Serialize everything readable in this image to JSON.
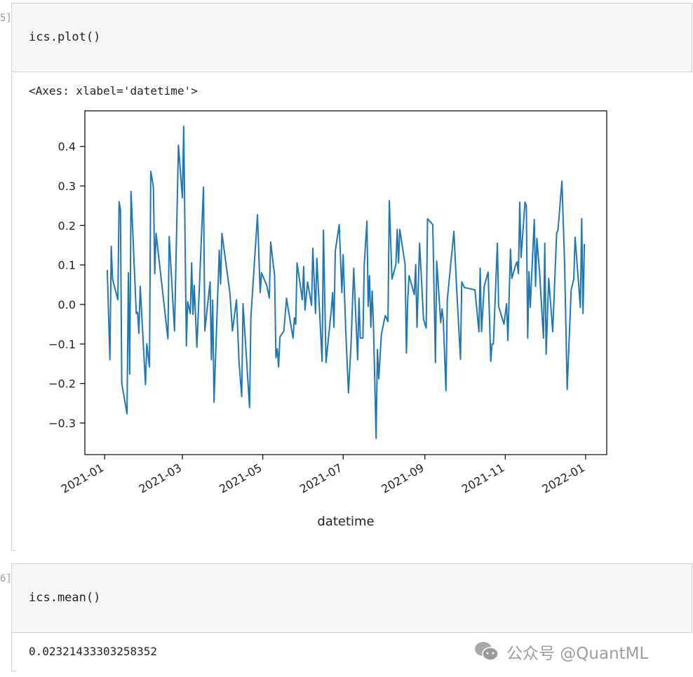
{
  "cells": [
    {
      "prompt": "5]",
      "code": "ics.plot()",
      "output": "<Axes: xlabel='datetime'>"
    },
    {
      "prompt": "6]",
      "code": "ics.mean()",
      "output": "0.02321433303258352"
    }
  ],
  "watermark": {
    "text": "公众号 @QuantML",
    "icon": "wechat-icon"
  },
  "colors": {
    "line": "#1f77b4",
    "input_bg": "#f7f7f7"
  },
  "chart_data": {
    "type": "line",
    "xlabel": "datetime",
    "ylabel": "",
    "xlim": [
      "2020-12-17",
      "2022-01-17"
    ],
    "ylim": [
      -0.38,
      0.49
    ],
    "grid": false,
    "x_ticks": [
      "2021-01",
      "2021-03",
      "2021-05",
      "2021-07",
      "2021-09",
      "2021-11",
      "2022-01"
    ],
    "y_ticks": [
      "0.4",
      "0.3",
      "0.2",
      "0.1",
      "0.0",
      "−0.1",
      "−0.2",
      "−0.3"
    ],
    "y_tick_values": [
      0.4,
      0.3,
      0.2,
      0.1,
      0.0,
      -0.1,
      -0.2,
      -0.3
    ],
    "points": [
      [
        "2021-01-03",
        0.087
      ],
      [
        "2021-01-05",
        -0.14
      ],
      [
        "2021-01-06",
        0.147
      ],
      [
        "2021-01-07",
        0.064
      ],
      [
        "2021-01-11",
        0.012
      ],
      [
        "2021-01-12",
        0.26
      ],
      [
        "2021-01-13",
        0.24
      ],
      [
        "2021-01-14",
        -0.2
      ],
      [
        "2021-01-18",
        -0.277
      ],
      [
        "2021-01-19",
        0.08
      ],
      [
        "2021-01-20",
        -0.176
      ],
      [
        "2021-01-21",
        0.286
      ],
      [
        "2021-01-25",
        -0.023
      ],
      [
        "2021-01-26",
        -0.02
      ],
      [
        "2021-01-27",
        -0.073
      ],
      [
        "2021-01-28",
        0.046
      ],
      [
        "2021-02-01",
        -0.203
      ],
      [
        "2021-02-02",
        -0.1
      ],
      [
        "2021-02-04",
        -0.158
      ],
      [
        "2021-02-05",
        0.337
      ],
      [
        "2021-02-07",
        0.297
      ],
      [
        "2021-02-08",
        0.078
      ],
      [
        "2021-02-09",
        0.18
      ],
      [
        "2021-02-18",
        -0.087
      ],
      [
        "2021-02-19",
        0.172
      ],
      [
        "2021-02-23",
        -0.067
      ],
      [
        "2021-02-26",
        0.403
      ],
      [
        "2021-03-01",
        0.27
      ],
      [
        "2021-03-02",
        0.451
      ],
      [
        "2021-03-04",
        -0.105
      ],
      [
        "2021-03-05",
        0.007
      ],
      [
        "2021-03-07",
        -0.023
      ],
      [
        "2021-03-08",
        0.105
      ],
      [
        "2021-03-09",
        -0.025
      ],
      [
        "2021-03-10",
        0.048
      ],
      [
        "2021-03-12",
        -0.108
      ],
      [
        "2021-03-17",
        0.297
      ],
      [
        "2021-03-18",
        -0.067
      ],
      [
        "2021-03-22",
        0.057
      ],
      [
        "2021-03-23",
        -0.14
      ],
      [
        "2021-03-24",
        0.011
      ],
      [
        "2021-03-25",
        -0.247
      ],
      [
        "2021-03-29",
        0.137
      ],
      [
        "2021-03-30",
        0.052
      ],
      [
        "2021-03-31",
        0.18
      ],
      [
        "2021-04-06",
        0.03
      ],
      [
        "2021-04-08",
        -0.067
      ],
      [
        "2021-04-11",
        0.012
      ],
      [
        "2021-04-13",
        -0.146
      ],
      [
        "2021-04-15",
        -0.233
      ],
      [
        "2021-04-16",
        0.002
      ],
      [
        "2021-04-21",
        -0.261
      ],
      [
        "2021-04-22",
        -0.032
      ],
      [
        "2021-04-27",
        0.227
      ],
      [
        "2021-04-29",
        0.03
      ],
      [
        "2021-04-30",
        0.08
      ],
      [
        "2021-05-04",
        0.048
      ],
      [
        "2021-05-06",
        0.016
      ],
      [
        "2021-05-07",
        0.158
      ],
      [
        "2021-05-10",
        0.073
      ],
      [
        "2021-05-11",
        -0.135
      ],
      [
        "2021-05-12",
        -0.112
      ],
      [
        "2021-05-13",
        -0.158
      ],
      [
        "2021-05-14",
        -0.082
      ],
      [
        "2021-05-17",
        -0.067
      ],
      [
        "2021-05-19",
        0.016
      ],
      [
        "2021-05-20",
        -0.005
      ],
      [
        "2021-05-24",
        -0.085
      ],
      [
        "2021-05-25",
        -0.034
      ],
      [
        "2021-05-26",
        -0.05
      ],
      [
        "2021-05-27",
        0.105
      ],
      [
        "2021-05-31",
        0.012
      ],
      [
        "2021-06-01",
        0.096
      ],
      [
        "2021-06-02",
        -0.014
      ],
      [
        "2021-06-04",
        0.057
      ],
      [
        "2021-06-07",
        -0.002
      ],
      [
        "2021-06-08",
        0.142
      ],
      [
        "2021-06-10",
        -0.023
      ],
      [
        "2021-06-11",
        0.117
      ],
      [
        "2021-06-15",
        -0.144
      ],
      [
        "2021-06-16",
        0.188
      ],
      [
        "2021-06-18",
        -0.147
      ],
      [
        "2021-06-22",
        -0.014
      ],
      [
        "2021-06-23",
        0.03
      ],
      [
        "2021-06-24",
        -0.058
      ],
      [
        "2021-06-25",
        0.135
      ],
      [
        "2021-06-28",
        0.202
      ],
      [
        "2021-06-30",
        0.03
      ],
      [
        "2021-07-01",
        0.126
      ],
      [
        "2021-07-03",
        -0.07
      ],
      [
        "2021-07-05",
        -0.224
      ],
      [
        "2021-07-07",
        -0.1
      ],
      [
        "2021-07-09",
        0.092
      ],
      [
        "2021-07-12",
        -0.14
      ],
      [
        "2021-07-13",
        0.016
      ],
      [
        "2021-07-14",
        -0.085
      ],
      [
        "2021-07-16",
        -0.085
      ],
      [
        "2021-07-17",
        0.101
      ],
      [
        "2021-07-19",
        0.211
      ],
      [
        "2021-07-20",
        -0.005
      ],
      [
        "2021-07-21",
        0.073
      ],
      [
        "2021-07-22",
        -0.058
      ],
      [
        "2021-07-23",
        0.034
      ],
      [
        "2021-07-24",
        -0.058
      ],
      [
        "2021-07-26",
        -0.339
      ],
      [
        "2021-07-27",
        -0.114
      ],
      [
        "2021-07-28",
        -0.188
      ],
      [
        "2021-07-30",
        -0.076
      ],
      [
        "2021-08-01",
        -0.043
      ],
      [
        "2021-08-02",
        -0.028
      ],
      [
        "2021-08-04",
        -0.043
      ],
      [
        "2021-08-05",
        0.263
      ],
      [
        "2021-08-07",
        0.064
      ],
      [
        "2021-08-10",
        0.101
      ],
      [
        "2021-08-11",
        0.19
      ],
      [
        "2021-08-12",
        0.105
      ],
      [
        "2021-08-13",
        0.19
      ],
      [
        "2021-08-17",
        0.101
      ],
      [
        "2021-08-18",
        -0.123
      ],
      [
        "2021-08-19",
        0.012
      ],
      [
        "2021-08-20",
        0.073
      ],
      [
        "2021-08-24",
        0.025
      ],
      [
        "2021-08-25",
        0.101
      ],
      [
        "2021-08-26",
        -0.058
      ],
      [
        "2021-08-28",
        0.155
      ],
      [
        "2021-08-31",
        -0.037
      ],
      [
        "2021-09-02",
        -0.06
      ],
      [
        "2021-09-03",
        0.217
      ],
      [
        "2021-09-07",
        0.202
      ],
      [
        "2021-09-09",
        -0.147
      ],
      [
        "2021-09-10",
        0.11
      ],
      [
        "2021-09-13",
        -0.046
      ],
      [
        "2021-09-14",
        -0.011
      ],
      [
        "2021-09-15",
        -0.04
      ],
      [
        "2021-09-17",
        -0.218
      ],
      [
        "2021-09-18",
        0.012
      ],
      [
        "2021-09-23",
        0.185
      ],
      [
        "2021-09-25",
        0.048
      ],
      [
        "2021-09-28",
        -0.139
      ],
      [
        "2021-09-29",
        0.057
      ],
      [
        "2021-10-01",
        0.043
      ],
      [
        "2021-10-09",
        0.037
      ],
      [
        "2021-10-12",
        -0.069
      ],
      [
        "2021-10-13",
        0.092
      ],
      [
        "2021-10-14",
        -0.069
      ],
      [
        "2021-10-16",
        0.046
      ],
      [
        "2021-10-19",
        0.082
      ],
      [
        "2021-10-21",
        -0.144
      ],
      [
        "2021-10-22",
        -0.1
      ],
      [
        "2021-10-23",
        -0.1
      ],
      [
        "2021-10-26",
        0.155
      ],
      [
        "2021-10-27",
        -0.005
      ],
      [
        "2021-10-31",
        -0.05
      ],
      [
        "2021-11-02",
        0.002
      ],
      [
        "2021-11-03",
        -0.091
      ],
      [
        "2021-11-05",
        0.14
      ],
      [
        "2021-11-06",
        0.066
      ],
      [
        "2021-11-09",
        0.101
      ],
      [
        "2021-11-10",
        0.108
      ],
      [
        "2021-11-11",
        0.078
      ],
      [
        "2021-11-12",
        0.259
      ],
      [
        "2021-11-13",
        0.119
      ],
      [
        "2021-11-16",
        0.259
      ],
      [
        "2021-11-17",
        0.25
      ],
      [
        "2021-11-18",
        -0.085
      ],
      [
        "2021-11-19",
        0.083
      ],
      [
        "2021-11-20",
        -0.007
      ],
      [
        "2021-11-23",
        0.215
      ],
      [
        "2021-11-24",
        0.046
      ],
      [
        "2021-11-25",
        0.167
      ],
      [
        "2021-11-27",
        0.083
      ],
      [
        "2021-11-30",
        -0.085
      ],
      [
        "2021-12-01",
        0.155
      ],
      [
        "2021-12-02",
        -0.126
      ],
      [
        "2021-12-04",
        0.066
      ],
      [
        "2021-12-07",
        -0.069
      ],
      [
        "2021-12-10",
        0.181
      ],
      [
        "2021-12-11",
        0.188
      ],
      [
        "2021-12-14",
        0.312
      ],
      [
        "2021-12-16",
        0.108
      ],
      [
        "2021-12-18",
        -0.215
      ],
      [
        "2021-12-21",
        0.037
      ],
      [
        "2021-12-23",
        0.064
      ],
      [
        "2021-12-24",
        0.17
      ],
      [
        "2021-12-28",
        -0.007
      ],
      [
        "2021-12-29",
        0.217
      ],
      [
        "2021-12-30",
        -0.023
      ],
      [
        "2021-12-31",
        0.153
      ]
    ]
  }
}
